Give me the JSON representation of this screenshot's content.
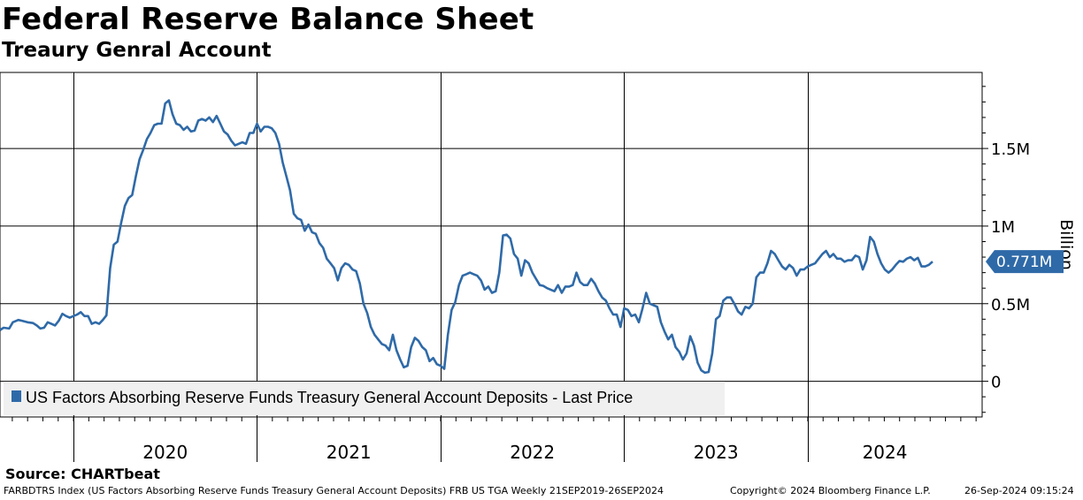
{
  "header": {
    "title": "Federal Reserve Balance Sheet",
    "subtitle": "Treaury Genral Account"
  },
  "chart_data": {
    "type": "line",
    "title": "Federal Reserve Balance Sheet",
    "subtitle": "Treaury Genral Account",
    "ylabel": "Billion",
    "xlabel": "",
    "ylim": [
      -230,
      1990
    ],
    "xlim": [
      2019.6,
      2024.95
    ],
    "y_ticks": [
      0,
      500,
      1000,
      1500
    ],
    "y_tick_labels": [
      "0",
      "0.5M",
      "1M",
      "1.5M"
    ],
    "year_labels": [
      "2020",
      "2021",
      "2022",
      "2023",
      "2024"
    ],
    "year_label_positions": [
      2020.5,
      2021.5,
      2022.5,
      2023.5,
      2024.42
    ],
    "grid_x": [
      2020,
      2021,
      2022,
      2023,
      2024
    ],
    "grid": true,
    "legend": {
      "placement": "bottom-left",
      "entries": [
        {
          "label": "US Factors Absorbing Reserve Funds Treasury General Account Deposits - Last Price",
          "color": "#2f6aa8"
        }
      ]
    },
    "last_price": {
      "label": "0.771M",
      "value": 771
    },
    "series": [
      {
        "name": "US Factors Absorbing Reserve Funds Treasury General Account Deposits - Last Price",
        "color": "#2f6aa8",
        "points": [
          [
            2019.6,
            330
          ],
          [
            2019.62,
            345
          ],
          [
            2019.65,
            340
          ],
          [
            2019.67,
            380
          ],
          [
            2019.7,
            395
          ],
          [
            2019.72,
            390
          ],
          [
            2019.75,
            380
          ],
          [
            2019.78,
            375
          ],
          [
            2019.8,
            360
          ],
          [
            2019.82,
            340
          ],
          [
            2019.84,
            345
          ],
          [
            2019.86,
            380
          ],
          [
            2019.88,
            370
          ],
          [
            2019.9,
            360
          ],
          [
            2019.92,
            390
          ],
          [
            2019.94,
            435
          ],
          [
            2019.96,
            420
          ],
          [
            2019.98,
            410
          ],
          [
            2020.0,
            420
          ],
          [
            2020.02,
            430
          ],
          [
            2020.04,
            445
          ],
          [
            2020.06,
            420
          ],
          [
            2020.08,
            420
          ],
          [
            2020.1,
            370
          ],
          [
            2020.12,
            380
          ],
          [
            2020.14,
            370
          ],
          [
            2020.16,
            395
          ],
          [
            2020.18,
            425
          ],
          [
            2020.2,
            730
          ],
          [
            2020.22,
            880
          ],
          [
            2020.24,
            900
          ],
          [
            2020.26,
            1020
          ],
          [
            2020.28,
            1130
          ],
          [
            2020.3,
            1180
          ],
          [
            2020.32,
            1200
          ],
          [
            2020.34,
            1320
          ],
          [
            2020.36,
            1430
          ],
          [
            2020.38,
            1490
          ],
          [
            2020.4,
            1560
          ],
          [
            2020.42,
            1600
          ],
          [
            2020.44,
            1650
          ],
          [
            2020.46,
            1660
          ],
          [
            2020.48,
            1660
          ],
          [
            2020.5,
            1790
          ],
          [
            2020.52,
            1810
          ],
          [
            2020.54,
            1720
          ],
          [
            2020.56,
            1660
          ],
          [
            2020.58,
            1650
          ],
          [
            2020.6,
            1620
          ],
          [
            2020.62,
            1640
          ],
          [
            2020.64,
            1610
          ],
          [
            2020.66,
            1615
          ],
          [
            2020.68,
            1680
          ],
          [
            2020.7,
            1690
          ],
          [
            2020.72,
            1680
          ],
          [
            2020.74,
            1700
          ],
          [
            2020.76,
            1670
          ],
          [
            2020.78,
            1710
          ],
          [
            2020.8,
            1660
          ],
          [
            2020.82,
            1610
          ],
          [
            2020.84,
            1590
          ],
          [
            2020.86,
            1550
          ],
          [
            2020.88,
            1520
          ],
          [
            2020.9,
            1530
          ],
          [
            2020.92,
            1540
          ],
          [
            2020.94,
            1530
          ],
          [
            2020.96,
            1600
          ],
          [
            2020.98,
            1600
          ],
          [
            2021.0,
            1660
          ],
          [
            2021.02,
            1610
          ],
          [
            2021.04,
            1640
          ],
          [
            2021.06,
            1640
          ],
          [
            2021.08,
            1630
          ],
          [
            2021.1,
            1600
          ],
          [
            2021.12,
            1530
          ],
          [
            2021.14,
            1410
          ],
          [
            2021.16,
            1320
          ],
          [
            2021.18,
            1230
          ],
          [
            2021.2,
            1080
          ],
          [
            2021.22,
            1050
          ],
          [
            2021.24,
            1040
          ],
          [
            2021.26,
            970
          ],
          [
            2021.28,
            1010
          ],
          [
            2021.3,
            960
          ],
          [
            2021.32,
            950
          ],
          [
            2021.34,
            890
          ],
          [
            2021.36,
            860
          ],
          [
            2021.38,
            790
          ],
          [
            2021.4,
            760
          ],
          [
            2021.42,
            730
          ],
          [
            2021.44,
            650
          ],
          [
            2021.46,
            730
          ],
          [
            2021.48,
            760
          ],
          [
            2021.5,
            750
          ],
          [
            2021.52,
            720
          ],
          [
            2021.54,
            710
          ],
          [
            2021.56,
            630
          ],
          [
            2021.58,
            500
          ],
          [
            2021.6,
            440
          ],
          [
            2021.62,
            350
          ],
          [
            2021.64,
            300
          ],
          [
            2021.66,
            270
          ],
          [
            2021.68,
            240
          ],
          [
            2021.7,
            230
          ],
          [
            2021.72,
            200
          ],
          [
            2021.74,
            300
          ],
          [
            2021.76,
            200
          ],
          [
            2021.78,
            140
          ],
          [
            2021.8,
            90
          ],
          [
            2021.82,
            100
          ],
          [
            2021.84,
            220
          ],
          [
            2021.86,
            280
          ],
          [
            2021.88,
            260
          ],
          [
            2021.9,
            220
          ],
          [
            2021.92,
            200
          ],
          [
            2021.94,
            130
          ],
          [
            2021.96,
            150
          ],
          [
            2021.98,
            110
          ],
          [
            2022.0,
            100
          ],
          [
            2022.02,
            80
          ],
          [
            2022.04,
            300
          ],
          [
            2022.06,
            460
          ],
          [
            2022.08,
            510
          ],
          [
            2022.1,
            620
          ],
          [
            2022.12,
            680
          ],
          [
            2022.14,
            690
          ],
          [
            2022.16,
            700
          ],
          [
            2022.18,
            690
          ],
          [
            2022.2,
            680
          ],
          [
            2022.22,
            650
          ],
          [
            2022.24,
            590
          ],
          [
            2022.26,
            610
          ],
          [
            2022.28,
            570
          ],
          [
            2022.3,
            580
          ],
          [
            2022.32,
            700
          ],
          [
            2022.34,
            940
          ],
          [
            2022.36,
            945
          ],
          [
            2022.38,
            920
          ],
          [
            2022.4,
            820
          ],
          [
            2022.42,
            790
          ],
          [
            2022.44,
            680
          ],
          [
            2022.46,
            780
          ],
          [
            2022.48,
            760
          ],
          [
            2022.5,
            700
          ],
          [
            2022.52,
            660
          ],
          [
            2022.54,
            620
          ],
          [
            2022.56,
            615
          ],
          [
            2022.58,
            600
          ],
          [
            2022.6,
            590
          ],
          [
            2022.62,
            580
          ],
          [
            2022.64,
            620
          ],
          [
            2022.66,
            570
          ],
          [
            2022.68,
            610
          ],
          [
            2022.7,
            610
          ],
          [
            2022.72,
            620
          ],
          [
            2022.74,
            700
          ],
          [
            2022.76,
            640
          ],
          [
            2022.78,
            620
          ],
          [
            2022.8,
            620
          ],
          [
            2022.82,
            660
          ],
          [
            2022.84,
            630
          ],
          [
            2022.86,
            580
          ],
          [
            2022.88,
            540
          ],
          [
            2022.9,
            520
          ],
          [
            2022.92,
            470
          ],
          [
            2022.94,
            430
          ],
          [
            2022.96,
            430
          ],
          [
            2022.98,
            350
          ],
          [
            2023.0,
            470
          ],
          [
            2023.02,
            460
          ],
          [
            2023.04,
            420
          ],
          [
            2023.06,
            430
          ],
          [
            2023.08,
            380
          ],
          [
            2023.1,
            470
          ],
          [
            2023.12,
            570
          ],
          [
            2023.14,
            500
          ],
          [
            2023.16,
            490
          ],
          [
            2023.18,
            480
          ],
          [
            2023.2,
            380
          ],
          [
            2023.22,
            320
          ],
          [
            2023.24,
            270
          ],
          [
            2023.26,
            300
          ],
          [
            2023.28,
            220
          ],
          [
            2023.3,
            190
          ],
          [
            2023.32,
            140
          ],
          [
            2023.34,
            180
          ],
          [
            2023.36,
            290
          ],
          [
            2023.38,
            230
          ],
          [
            2023.4,
            120
          ],
          [
            2023.42,
            70
          ],
          [
            2023.44,
            55
          ],
          [
            2023.46,
            60
          ],
          [
            2023.48,
            180
          ],
          [
            2023.5,
            400
          ],
          [
            2023.52,
            420
          ],
          [
            2023.54,
            520
          ],
          [
            2023.56,
            540
          ],
          [
            2023.58,
            540
          ],
          [
            2023.6,
            500
          ],
          [
            2023.62,
            450
          ],
          [
            2023.64,
            430
          ],
          [
            2023.66,
            480
          ],
          [
            2023.68,
            470
          ],
          [
            2023.7,
            500
          ],
          [
            2023.72,
            670
          ],
          [
            2023.74,
            700
          ],
          [
            2023.76,
            700
          ],
          [
            2023.78,
            760
          ],
          [
            2023.8,
            840
          ],
          [
            2023.82,
            820
          ],
          [
            2023.84,
            780
          ],
          [
            2023.86,
            740
          ],
          [
            2023.88,
            720
          ],
          [
            2023.9,
            750
          ],
          [
            2023.92,
            730
          ],
          [
            2023.94,
            680
          ],
          [
            2023.96,
            720
          ],
          [
            2023.98,
            720
          ],
          [
            2024.0,
            740
          ],
          [
            2024.02,
            750
          ],
          [
            2024.04,
            760
          ],
          [
            2024.06,
            790
          ],
          [
            2024.08,
            820
          ],
          [
            2024.1,
            840
          ],
          [
            2024.12,
            800
          ],
          [
            2024.14,
            820
          ],
          [
            2024.16,
            790
          ],
          [
            2024.18,
            790
          ],
          [
            2024.2,
            770
          ],
          [
            2024.22,
            780
          ],
          [
            2024.24,
            780
          ],
          [
            2024.26,
            810
          ],
          [
            2024.28,
            800
          ],
          [
            2024.3,
            720
          ],
          [
            2024.32,
            780
          ],
          [
            2024.34,
            930
          ],
          [
            2024.36,
            900
          ],
          [
            2024.38,
            820
          ],
          [
            2024.4,
            760
          ],
          [
            2024.42,
            720
          ],
          [
            2024.44,
            700
          ],
          [
            2024.46,
            720
          ],
          [
            2024.48,
            750
          ],
          [
            2024.5,
            775
          ],
          [
            2024.52,
            770
          ],
          [
            2024.54,
            790
          ],
          [
            2024.56,
            800
          ],
          [
            2024.58,
            780
          ],
          [
            2024.6,
            795
          ],
          [
            2024.62,
            740
          ],
          [
            2024.64,
            740
          ],
          [
            2024.66,
            750
          ],
          [
            2024.68,
            771
          ]
        ]
      }
    ]
  },
  "footer": {
    "source": "Source: CHARTbeat",
    "description": "FARBDTRS Index (US Factors Absorbing Reserve Funds Treasury General Account Deposits) FRB US TGA  Weekly 21SEP2019-26SEP2024",
    "copyright": "Copyright© 2024 Bloomberg Finance L.P.",
    "timestamp": "26-Sep-2024 09:15:24"
  }
}
